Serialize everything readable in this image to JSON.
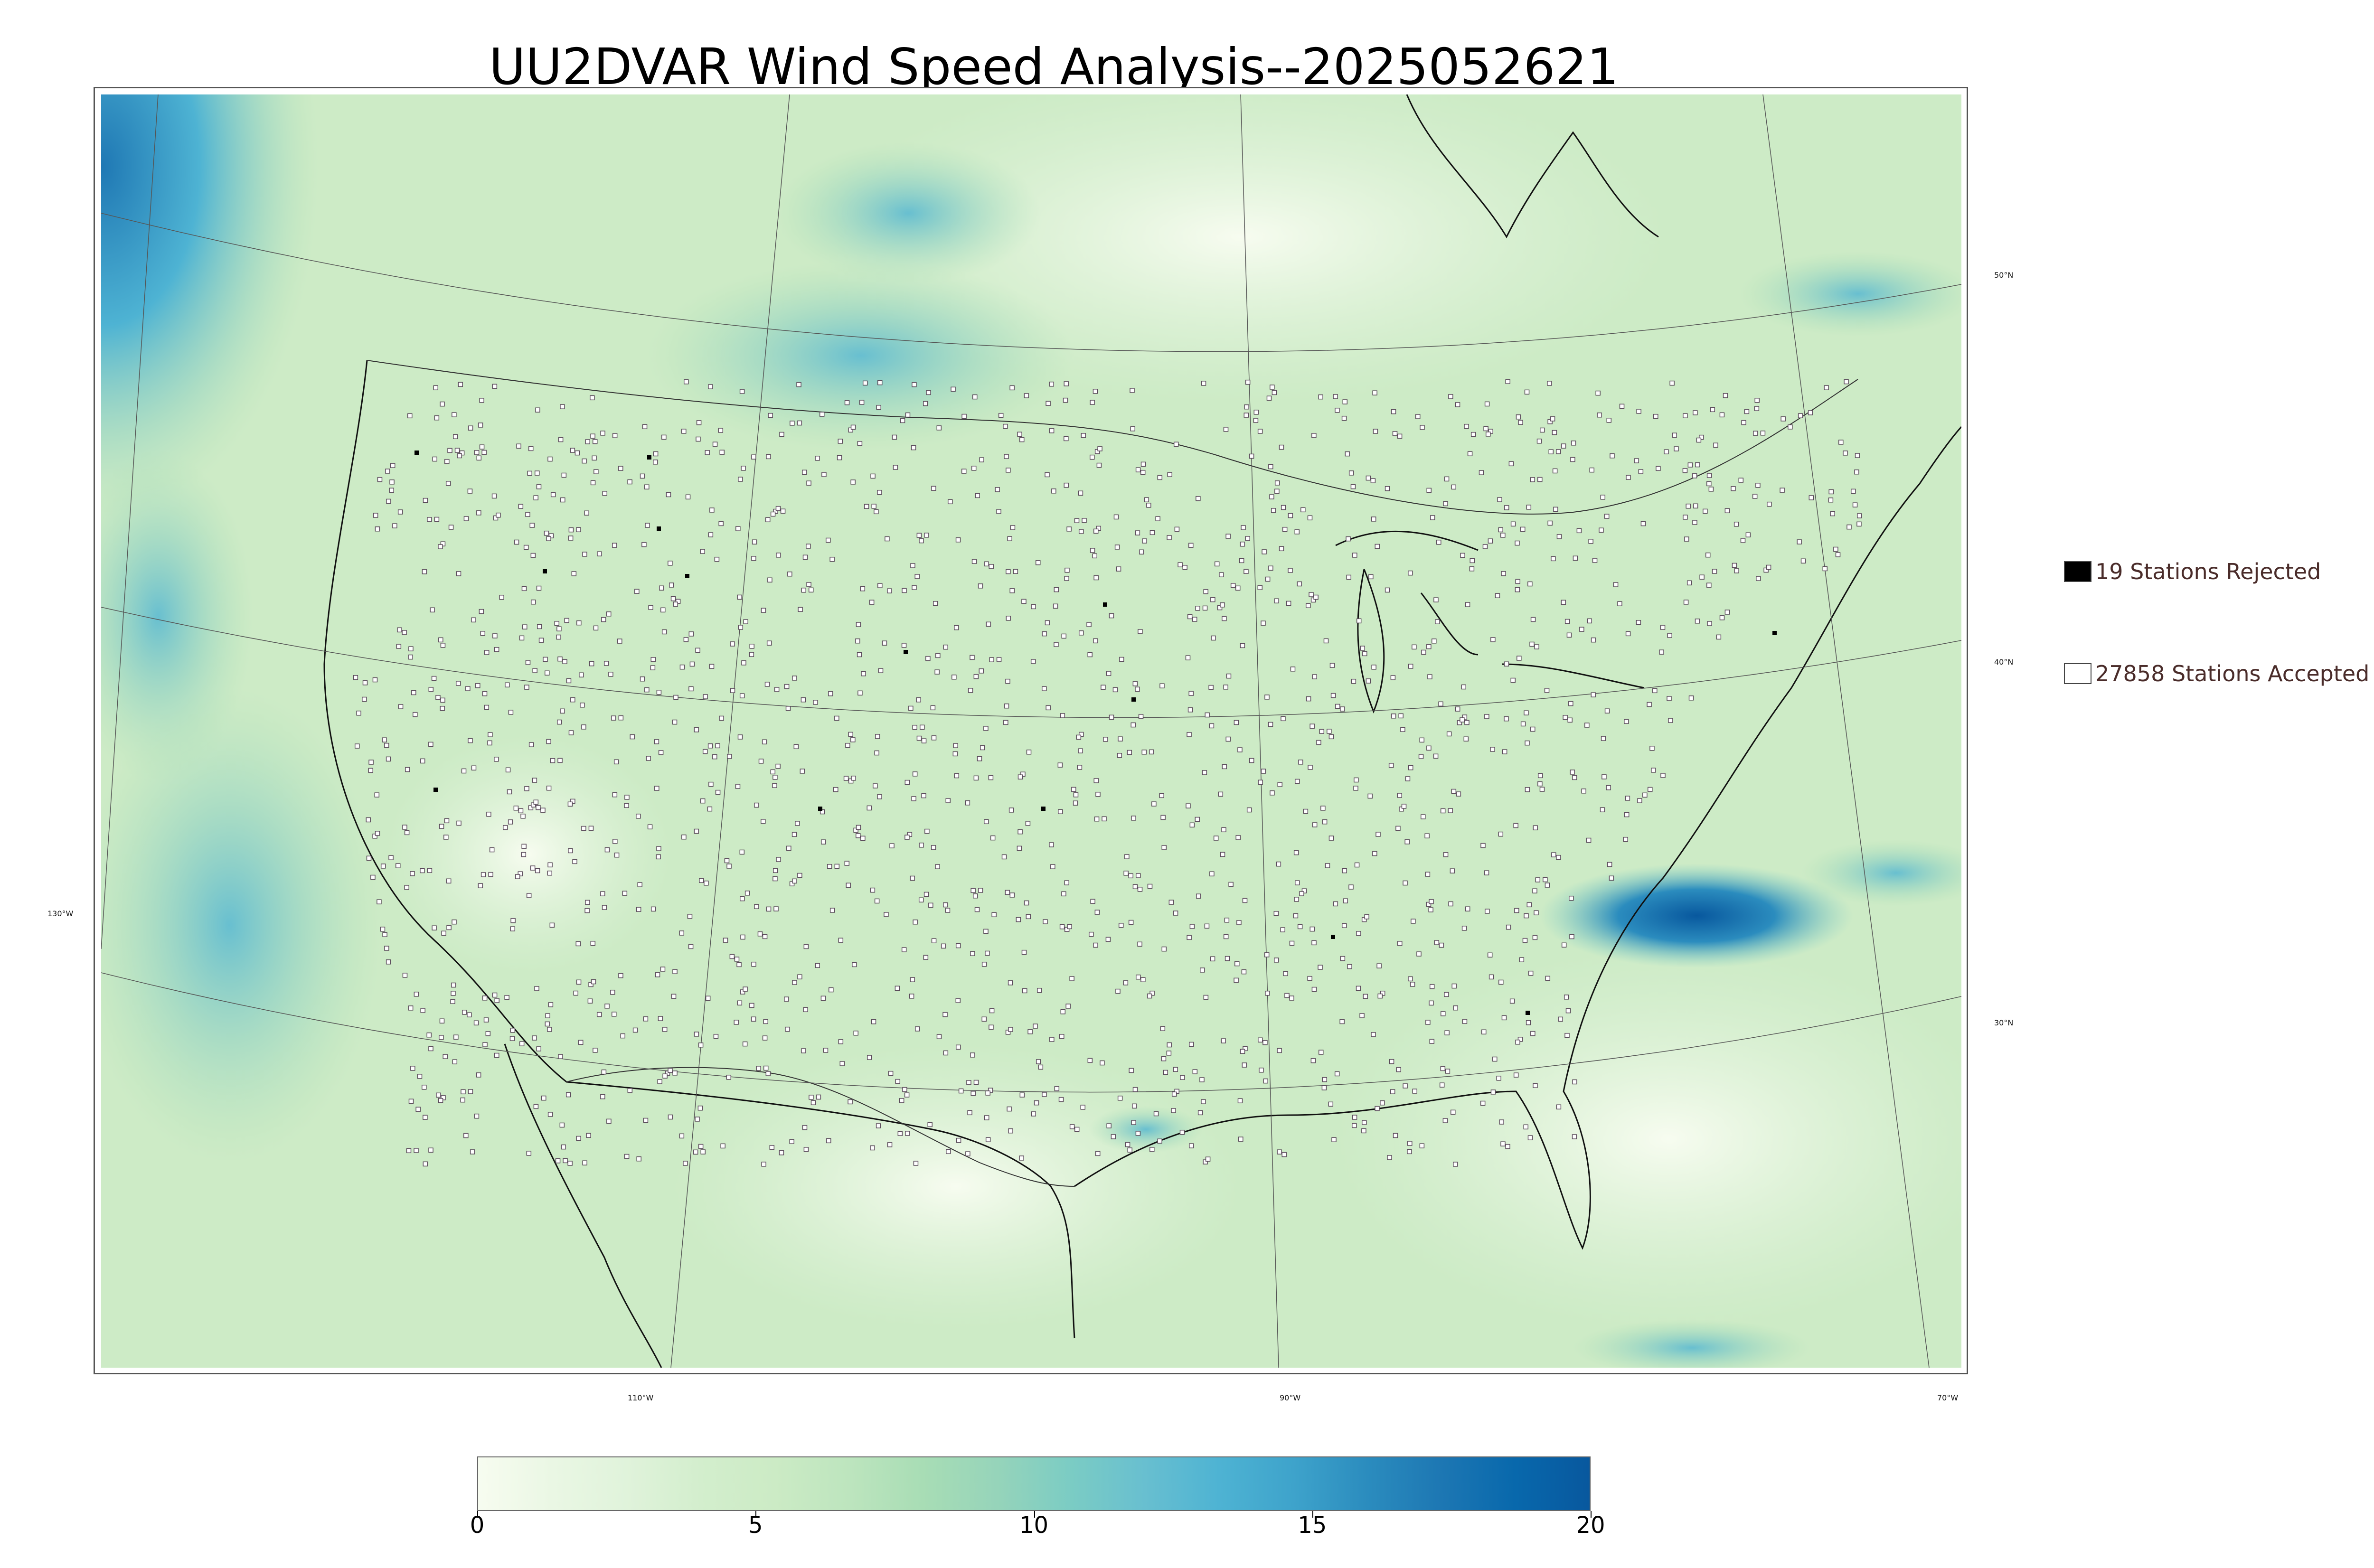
{
  "title": "UU2DVAR Wind Speed Analysis--2025052621",
  "map": {
    "lon_labels": [
      "130°W",
      "110°W",
      "90°W",
      "70°W"
    ],
    "lat_labels": [
      "50°N",
      "40°N",
      "30°N"
    ],
    "ocean_low_color": "#e8f5e0",
    "land_color": "#d6efcf",
    "high_wind_color": "#1f78b4"
  },
  "legend": {
    "rejected": {
      "label": "19 Stations Rejected",
      "swatch_color": "#000000"
    },
    "accepted": {
      "label": "27858 Stations Accepted",
      "swatch_color": "#ffffff"
    }
  },
  "colorbar": {
    "ticks": [
      "0",
      "5",
      "10",
      "15",
      "20"
    ],
    "colors": [
      "#f7fcf0",
      "#eaf7e4",
      "#e0f3db",
      "#d3eecd",
      "#ccebc5",
      "#bde5be",
      "#a8ddb5",
      "#96d4ba",
      "#7bccc4",
      "#68bfd0",
      "#4eb3d3",
      "#3ea3cb",
      "#2b8cbe",
      "#1d77b3",
      "#0868ac",
      "#08589e"
    ]
  },
  "chart_data": {
    "type": "heatmap",
    "title": "UU2DVAR Wind Speed Analysis--2025052621",
    "colorbar_range": [
      0,
      20
    ],
    "colorbar_ticks": [
      0,
      5,
      10,
      15,
      20
    ],
    "stations_rejected": 19,
    "stations_accepted": 27858
  }
}
